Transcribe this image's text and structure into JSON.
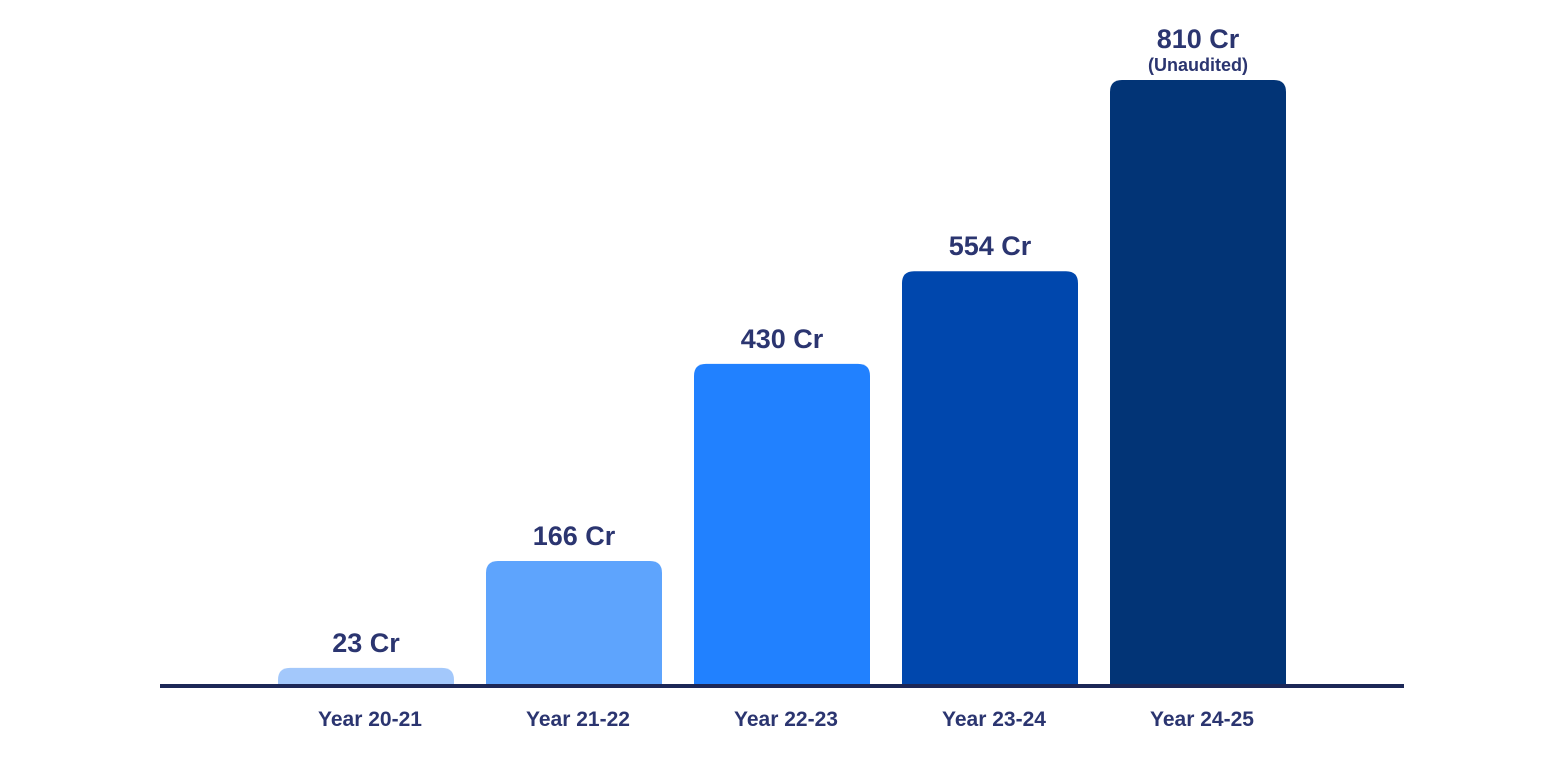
{
  "chart_data": {
    "type": "bar",
    "categories": [
      "Year 20-21",
      "Year 21-22",
      "Year 22-23",
      "Year 23-24",
      "Year 24-25"
    ],
    "values": [
      23,
      166,
      430,
      554,
      810
    ],
    "value_labels": [
      "23 Cr",
      "166 Cr",
      "430 Cr",
      "554 Cr",
      "810 Cr"
    ],
    "value_notes": [
      "",
      "",
      "",
      "",
      "(Unaudited)"
    ],
    "title": "",
    "xlabel": "",
    "ylabel": "",
    "ylim": [
      0,
      810
    ],
    "grid": false,
    "legend": "none",
    "bar_colors": [
      "#a3c8fb",
      "#5ea4fd",
      "#2181ff",
      "#0047ad",
      "#023476"
    ],
    "axis_color": "#1c2757",
    "label_color": "#2b3570"
  }
}
